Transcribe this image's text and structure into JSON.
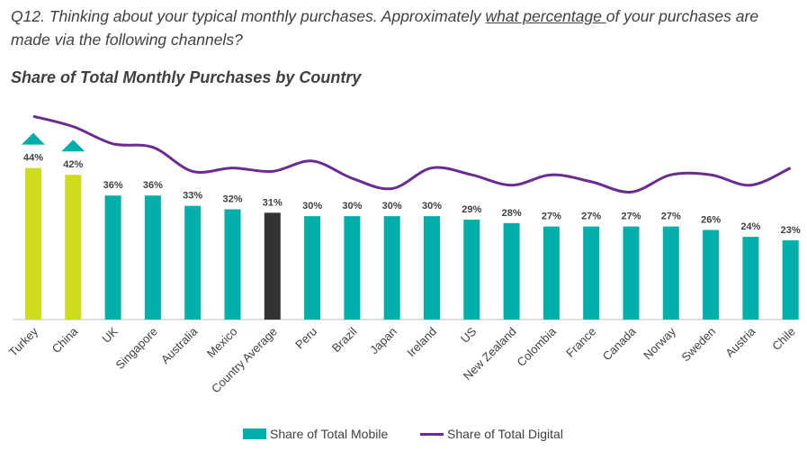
{
  "header": {
    "question_prefix": "Q12. Thinking about your typical monthly purchases. Approximately ",
    "question_underlined": "what percentage ",
    "question_suffix": "of your purchases are made via the following channels?"
  },
  "chart_data": {
    "type": "bar",
    "title": "Share of Total Monthly Purchases by Country",
    "xlabel": "",
    "ylabel": "",
    "categories": [
      "Turkey",
      "China",
      "UK",
      "Singapore",
      "Australia",
      "Mexico",
      "Country Average",
      "Peru",
      "Brazil",
      "Japan",
      "Ireland",
      "US",
      "New Zealand",
      "Colombia",
      "France",
      "Canada",
      "Norway",
      "Sweden",
      "Austria",
      "Chile"
    ],
    "series": [
      {
        "name": "Share of Total Mobile",
        "type": "bar",
        "values": [
          44,
          42,
          36,
          36,
          33,
          32,
          31,
          30,
          30,
          30,
          30,
          29,
          28,
          27,
          27,
          27,
          27,
          26,
          24,
          23
        ],
        "labels": [
          "44%",
          "42%",
          "36%",
          "36%",
          "33%",
          "32%",
          "31%",
          "30%",
          "30%",
          "30%",
          "30%",
          "29%",
          "28%",
          "27%",
          "27%",
          "27%",
          "27%",
          "26%",
          "24%",
          "23%"
        ]
      },
      {
        "name": "Share of Total Digital",
        "type": "line",
        "values": [
          59,
          56,
          51,
          50,
          43,
          44,
          43,
          46,
          41,
          38,
          44,
          42,
          39,
          42,
          40,
          37,
          42,
          42,
          39,
          44
        ]
      }
    ],
    "highlight_markers": [
      "Turkey",
      "China"
    ],
    "ylim": [
      0,
      64
    ],
    "grid": false,
    "legend": "bottom",
    "colors": {
      "mobile_bar": "#00AFAA",
      "highlight_bar": "#CEDC1E",
      "average_bar": "#333333",
      "digital_line": "#6A2C91",
      "marker": "#00AFAA",
      "text": "#404040",
      "axis": "#BFBFBF"
    }
  },
  "legend": {
    "mobile_label": "Share of Total Mobile",
    "digital_label": "Share of Total Digital"
  }
}
